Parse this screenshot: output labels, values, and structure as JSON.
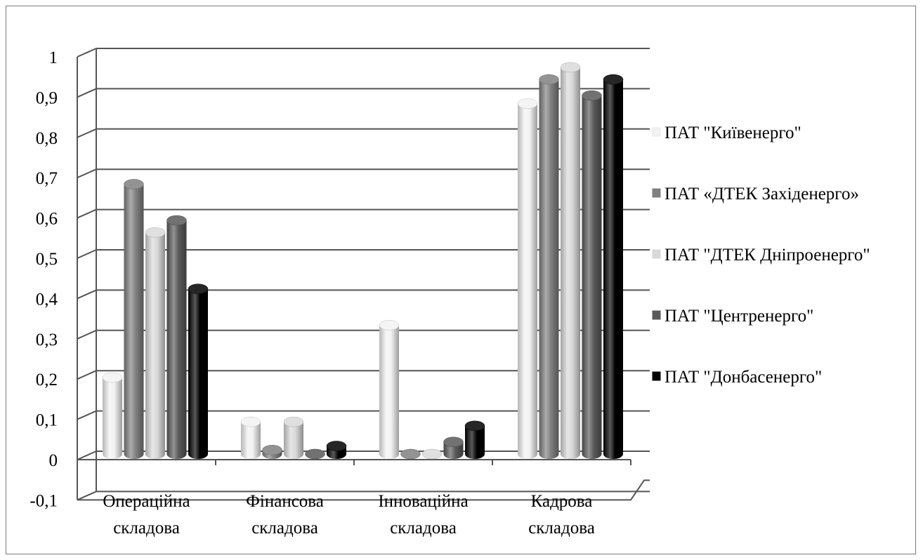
{
  "chart_data": {
    "type": "bar",
    "title": "",
    "xlabel": "",
    "ylabel": "",
    "ylim": [
      -0.1,
      1
    ],
    "yticks": [
      "-0,1",
      "0",
      "0,1",
      "0,2",
      "0,3",
      "0,4",
      "0,5",
      "0,6",
      "0,7",
      "0,8",
      "0,9",
      "1"
    ],
    "categories": [
      [
        "Операційна",
        "складова"
      ],
      [
        "Фінансова",
        "складова"
      ],
      [
        "Інноваційна",
        "складова"
      ],
      [
        "Кадрова",
        "складова"
      ]
    ],
    "series": [
      {
        "name": "ПАТ \"Київенерго\"",
        "color": "#f2f2f2",
        "values": [
          0.19,
          0.08,
          0.32,
          0.87
        ]
      },
      {
        "name": "ПАТ «ДТЕК Західенерго»",
        "color": "#808080",
        "values": [
          0.67,
          0.01,
          0.0,
          0.93
        ]
      },
      {
        "name": "ПАТ \"ДТЕК Дніпроенерго\"",
        "color": "#d9d9d9",
        "values": [
          0.55,
          0.08,
          0.0,
          0.96
        ]
      },
      {
        "name": "ПАТ \"Центренерго\"",
        "color": "#595959",
        "values": [
          0.58,
          0.0,
          0.03,
          0.89
        ]
      },
      {
        "name": "ПАТ \"Донбасенерго\"",
        "color": "#000000",
        "values": [
          0.41,
          0.02,
          0.07,
          0.93
        ]
      }
    ],
    "grid": true,
    "legend_position": "right",
    "style": "3d-cylinder"
  }
}
